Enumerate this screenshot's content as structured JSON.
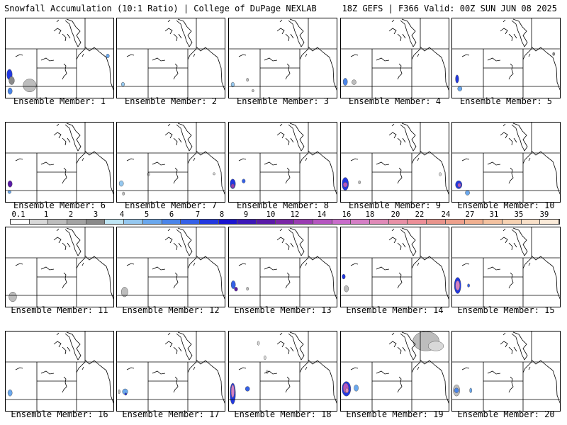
{
  "header": {
    "title": "Snowfall Accumulation (10:1 Ratio) | College of DuPage NEXLAB",
    "valid": "18Z GEFS | F366 Valid: 00Z SUN JUN 08 2025"
  },
  "colorbar": {
    "labels": [
      "0.1",
      "1",
      "2",
      "3",
      "4",
      "5",
      "6",
      "7",
      "8",
      "9",
      "10",
      "12",
      "14",
      "16",
      "18",
      "20",
      "22",
      "24",
      "27",
      "31",
      "35",
      "39"
    ],
    "colors": [
      "#ffffff",
      "#d8d8d8",
      "#bdbdbd",
      "#a3a3a3",
      "#8a8a8a",
      "#bfe6f5",
      "#95c8f0",
      "#6aa8ee",
      "#4a85ea",
      "#3561e8",
      "#2238e0",
      "#1a14d0",
      "#3c17b8",
      "#5a1aa8",
      "#7a26a6",
      "#9a3cb2",
      "#b555c0",
      "#c96ccb",
      "#d57fc6",
      "#e08ab8",
      "#e890a6",
      "#ed8f98",
      "#e9948c",
      "#eea08c",
      "#f1b090",
      "#f4c2a0",
      "#f7d2b2",
      "#f9e0c8",
      "#fbebd9"
    ]
  },
  "members": [
    {
      "label": "Ensemble Member: 1",
      "snow": [
        [
          0.01,
          0.63,
          0.05,
          0.13,
          "#2238e0"
        ],
        [
          0.03,
          0.72,
          0.05,
          0.1,
          "#8a8a8a"
        ],
        [
          0.16,
          0.75,
          0.12,
          0.16,
          "#bdbdbd"
        ],
        [
          0.02,
          0.86,
          0.04,
          0.08,
          "#4a85ea"
        ],
        [
          0.92,
          0.44,
          0.03,
          0.05,
          "#6aa8ee"
        ]
      ]
    },
    {
      "label": "Ensemble Member: 2",
      "snow": [
        [
          0.04,
          0.79,
          0.03,
          0.05,
          "#95c8f0"
        ]
      ]
    },
    {
      "label": "Ensemble Member: 3",
      "snow": [
        [
          0.02,
          0.79,
          0.03,
          0.06,
          "#95c8f0"
        ],
        [
          0.16,
          0.74,
          0.02,
          0.04,
          "#bdbdbd"
        ],
        [
          0.21,
          0.88,
          0.02,
          0.03,
          "#bdbdbd"
        ]
      ]
    },
    {
      "label": "Ensemble Member: 4",
      "snow": [
        [
          0.02,
          0.74,
          0.04,
          0.09,
          "#4a85ea"
        ],
        [
          0.1,
          0.76,
          0.04,
          0.06,
          "#bdbdbd"
        ]
      ]
    },
    {
      "label": "Ensemble Member: 5",
      "snow": [
        [
          0.03,
          0.7,
          0.03,
          0.1,
          "#2238e0"
        ],
        [
          0.05,
          0.84,
          0.04,
          0.06,
          "#6aa8ee"
        ],
        [
          0.92,
          0.42,
          0.02,
          0.04,
          "#8a8a8a"
        ]
      ]
    },
    {
      "label": "Ensemble Member: 6",
      "snow": [
        [
          0.02,
          0.72,
          0.04,
          0.08,
          "#5a1aa8"
        ],
        [
          0.02,
          0.84,
          0.03,
          0.04,
          "#6aa8ee"
        ]
      ]
    },
    {
      "label": "Ensemble Member: 7",
      "snow": [
        [
          0.02,
          0.72,
          0.04,
          0.07,
          "#95c8f0"
        ],
        [
          0.05,
          0.86,
          0.02,
          0.04,
          "#bdbdbd"
        ],
        [
          0.28,
          0.62,
          0.02,
          0.04,
          "#d8d8d8"
        ],
        [
          0.88,
          0.62,
          0.02,
          0.03,
          "#d8d8d8"
        ]
      ]
    },
    {
      "label": "Ensemble Member: 8",
      "snow": [
        [
          0.01,
          0.7,
          0.05,
          0.12,
          "#2238e0"
        ],
        [
          0.02,
          0.76,
          0.03,
          0.05,
          "#9a3cb2"
        ],
        [
          0.12,
          0.7,
          0.03,
          0.05,
          "#3561e8"
        ]
      ]
    },
    {
      "label": "Ensemble Member: 9",
      "snow": [
        [
          0.01,
          0.68,
          0.06,
          0.16,
          "#2238e0"
        ],
        [
          0.02,
          0.74,
          0.04,
          0.06,
          "#b555c0"
        ],
        [
          0.16,
          0.72,
          0.02,
          0.04,
          "#bdbdbd"
        ],
        [
          0.9,
          0.62,
          0.02,
          0.04,
          "#d8d8d8"
        ]
      ]
    },
    {
      "label": "Ensemble Member: 10",
      "snow": [
        [
          0.03,
          0.72,
          0.06,
          0.1,
          "#2238e0"
        ],
        [
          0.05,
          0.75,
          0.03,
          0.05,
          "#b555c0"
        ],
        [
          0.12,
          0.84,
          0.04,
          0.06,
          "#6aa8ee"
        ]
      ]
    },
    {
      "label": "Ensemble Member: 11",
      "snow": [
        [
          0.03,
          0.8,
          0.07,
          0.12,
          "#bdbdbd"
        ]
      ]
    },
    {
      "label": "Ensemble Member: 12",
      "snow": [
        [
          0.04,
          0.74,
          0.06,
          0.12,
          "#bdbdbd"
        ]
      ]
    },
    {
      "label": "Ensemble Member: 13",
      "snow": [
        [
          0.02,
          0.66,
          0.04,
          0.1,
          "#3561e8"
        ],
        [
          0.05,
          0.74,
          0.03,
          0.05,
          "#5a1aa8"
        ],
        [
          0.16,
          0.74,
          0.02,
          0.04,
          "#bdbdbd"
        ]
      ]
    },
    {
      "label": "Ensemble Member: 14",
      "snow": [
        [
          0.01,
          0.58,
          0.03,
          0.06,
          "#2238e0"
        ],
        [
          0.03,
          0.72,
          0.04,
          0.08,
          "#bdbdbd"
        ]
      ]
    },
    {
      "label": "Ensemble Member: 15",
      "snow": [
        [
          0.02,
          0.62,
          0.06,
          0.2,
          "#2238e0"
        ],
        [
          0.03,
          0.66,
          0.04,
          0.12,
          "#d57fc6"
        ],
        [
          0.14,
          0.7,
          0.02,
          0.04,
          "#3561e8"
        ]
      ]
    },
    {
      "label": "Ensemble Member: 16",
      "snow": [
        [
          0.02,
          0.72,
          0.04,
          0.08,
          "#6aa8ee"
        ]
      ]
    },
    {
      "label": "Ensemble Member: 17",
      "snow": [
        [
          0.05,
          0.71,
          0.05,
          0.07,
          "#6aa8ee"
        ],
        [
          0.07,
          0.76,
          0.02,
          0.03,
          "#2238e0"
        ],
        [
          0.01,
          0.72,
          0.02,
          0.05,
          "#bdbdbd"
        ]
      ]
    },
    {
      "label": "Ensemble Member: 18",
      "snow": [
        [
          0.01,
          0.64,
          0.05,
          0.26,
          "#2238e0"
        ],
        [
          0.02,
          0.66,
          0.03,
          0.16,
          "#d57fc6"
        ],
        [
          0.15,
          0.68,
          0.04,
          0.06,
          "#3561e8"
        ],
        [
          0.26,
          0.12,
          0.02,
          0.05,
          "#d8d8d8"
        ],
        [
          0.32,
          0.3,
          0.02,
          0.05,
          "#d8d8d8"
        ],
        [
          0.34,
          0.48,
          0.02,
          0.04,
          "#d8d8d8"
        ]
      ]
    },
    {
      "label": "Ensemble Member: 19",
      "snow": [
        [
          0.66,
          0.0,
          0.24,
          0.24,
          "#bdbdbd"
        ],
        [
          0.8,
          0.12,
          0.14,
          0.12,
          "#d8d8d8"
        ],
        [
          0.01,
          0.62,
          0.08,
          0.18,
          "#2238e0"
        ],
        [
          0.02,
          0.64,
          0.05,
          0.12,
          "#b555c0"
        ],
        [
          0.04,
          0.7,
          0.03,
          0.06,
          "#e08ab8"
        ],
        [
          0.12,
          0.66,
          0.04,
          0.08,
          "#6aa8ee"
        ]
      ]
    },
    {
      "label": "Ensemble Member: 20",
      "snow": [
        [
          0.01,
          0.66,
          0.06,
          0.14,
          "#bdbdbd"
        ],
        [
          0.02,
          0.7,
          0.04,
          0.06,
          "#4a85ea"
        ],
        [
          0.16,
          0.7,
          0.02,
          0.06,
          "#6aa8ee"
        ]
      ]
    }
  ]
}
